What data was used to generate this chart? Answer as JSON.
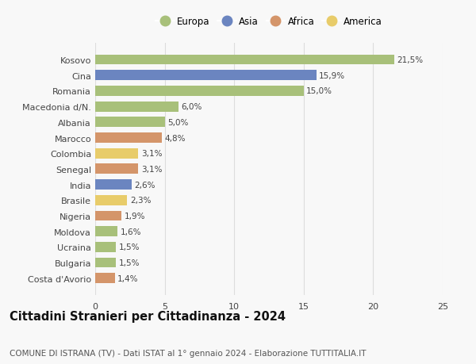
{
  "countries": [
    "Costa d'Avorio",
    "Bulgaria",
    "Ucraina",
    "Moldova",
    "Nigeria",
    "Brasile",
    "India",
    "Senegal",
    "Colombia",
    "Marocco",
    "Albania",
    "Macedonia d/N.",
    "Romania",
    "Cina",
    "Kosovo"
  ],
  "values": [
    1.4,
    1.5,
    1.5,
    1.6,
    1.9,
    2.3,
    2.6,
    3.1,
    3.1,
    4.8,
    5.0,
    6.0,
    15.0,
    15.9,
    21.5
  ],
  "labels": [
    "1,4%",
    "1,5%",
    "1,5%",
    "1,6%",
    "1,9%",
    "2,3%",
    "2,6%",
    "3,1%",
    "3,1%",
    "4,8%",
    "5,0%",
    "6,0%",
    "15,0%",
    "15,9%",
    "21,5%"
  ],
  "continents": [
    "Africa",
    "Europa",
    "Europa",
    "Europa",
    "Africa",
    "America",
    "Asia",
    "Africa",
    "America",
    "Africa",
    "Europa",
    "Europa",
    "Europa",
    "Asia",
    "Europa"
  ],
  "continent_colors": {
    "Europa": "#a8c07a",
    "Asia": "#6b85c0",
    "Africa": "#d4956a",
    "America": "#e8cc6a"
  },
  "legend_order": [
    "Europa",
    "Asia",
    "Africa",
    "America"
  ],
  "title": "Cittadini Stranieri per Cittadinanza - 2024",
  "subtitle": "COMUNE DI ISTRANA (TV) - Dati ISTAT al 1° gennaio 2024 - Elaborazione TUTTITALIA.IT",
  "xlabel_ticks": [
    0,
    5,
    10,
    15,
    20,
    25
  ],
  "xlim": [
    0,
    25
  ],
  "background_color": "#f8f8f8",
  "grid_color": "#dddddd",
  "bar_height": 0.65,
  "title_fontsize": 10.5,
  "subtitle_fontsize": 7.5,
  "label_fontsize": 7.5,
  "ytick_fontsize": 8,
  "xtick_fontsize": 8
}
